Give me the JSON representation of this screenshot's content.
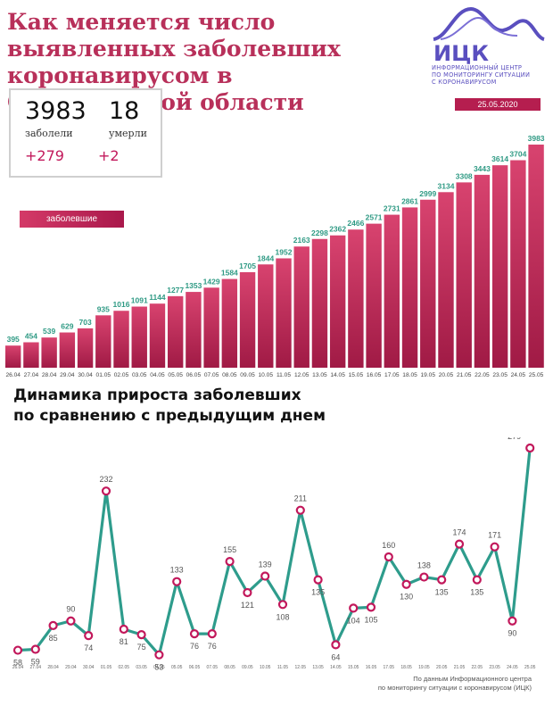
{
  "header": {
    "title": "Как меняется число выявленных заболевших коронавирусом в Свердловской области",
    "logo_text": "ИЦК",
    "logo_caption": [
      "ИНФОРМАЦИОННЫЙ ЦЕНТР",
      "ПО МОНИТОРИНГУ СИТУАЦИИ",
      "С КОРОНАВИРУСОМ"
    ],
    "date": "25.05.2020"
  },
  "summary": {
    "cases": "3983",
    "cases_label": "заболели",
    "cases_increase": "+279",
    "deaths": "18",
    "deaths_label": "умерли",
    "deaths_increase": "+2"
  },
  "legend": {
    "label": "заболевшие"
  },
  "second_title_lines": [
    "Динамика прироста заболевших",
    "по сравнению с предыдущим днем"
  ],
  "source_lines": [
    "По данным Информационного центра",
    "по мониторингу ситуации с коронавирусом (ИЦК)"
  ],
  "colors": {
    "accent": "#b8305a",
    "bar_top": "#d8436f",
    "bar_bottom": "#a01a45",
    "value_label": "#2f9a84",
    "line": "#2e9c8c",
    "marker": "#c2185b",
    "logo": "#5a4fbf",
    "date_bg": "#b51e4f"
  },
  "chart_data": [
    {
      "type": "bar",
      "categories": [
        "26.04",
        "27.04",
        "28.04",
        "29.04",
        "30.04",
        "01.05",
        "02.05",
        "03.05",
        "04.05",
        "05.05",
        "06.05",
        "07.05",
        "08.05",
        "09.05",
        "10.05",
        "11.05",
        "12.05",
        "13.05",
        "14.05",
        "15.05",
        "16.05",
        "17.05",
        "18.05",
        "19.05",
        "20.05",
        "21.05",
        "22.05",
        "23.05",
        "24.05",
        "25.05"
      ],
      "series": [
        {
          "name": "заболевшие",
          "values": [
            395,
            454,
            539,
            629,
            703,
            935,
            1016,
            1091,
            1144,
            1277,
            1353,
            1429,
            1584,
            1705,
            1844,
            1952,
            2163,
            2298,
            2362,
            2466,
            2571,
            2731,
            2861,
            2999,
            3134,
            3308,
            3443,
            3614,
            3704,
            3983
          ]
        }
      ],
      "ylim": [
        0,
        3983
      ],
      "grid": false
    },
    {
      "type": "line",
      "categories": [
        "26.04",
        "27.04",
        "28.04",
        "29.04",
        "30.04",
        "01.05",
        "02.05",
        "03.05",
        "04.05",
        "05.05",
        "06.05",
        "07.05",
        "08.05",
        "09.05",
        "10.05",
        "11.05",
        "12.05",
        "13.05",
        "14.05",
        "15.05",
        "16.05",
        "17.05",
        "18.05",
        "19.05",
        "20.05",
        "21.05",
        "22.05",
        "23.05",
        "24.05",
        "25.05"
      ],
      "series": [
        {
          "values": [
            58,
            59,
            85,
            90,
            74,
            232,
            81,
            75,
            53,
            133,
            76,
            76,
            155,
            121,
            139,
            108,
            211,
            135,
            64,
            104,
            105,
            160,
            130,
            138,
            135,
            174,
            135,
            171,
            90,
            279
          ]
        }
      ],
      "grid": false
    }
  ]
}
